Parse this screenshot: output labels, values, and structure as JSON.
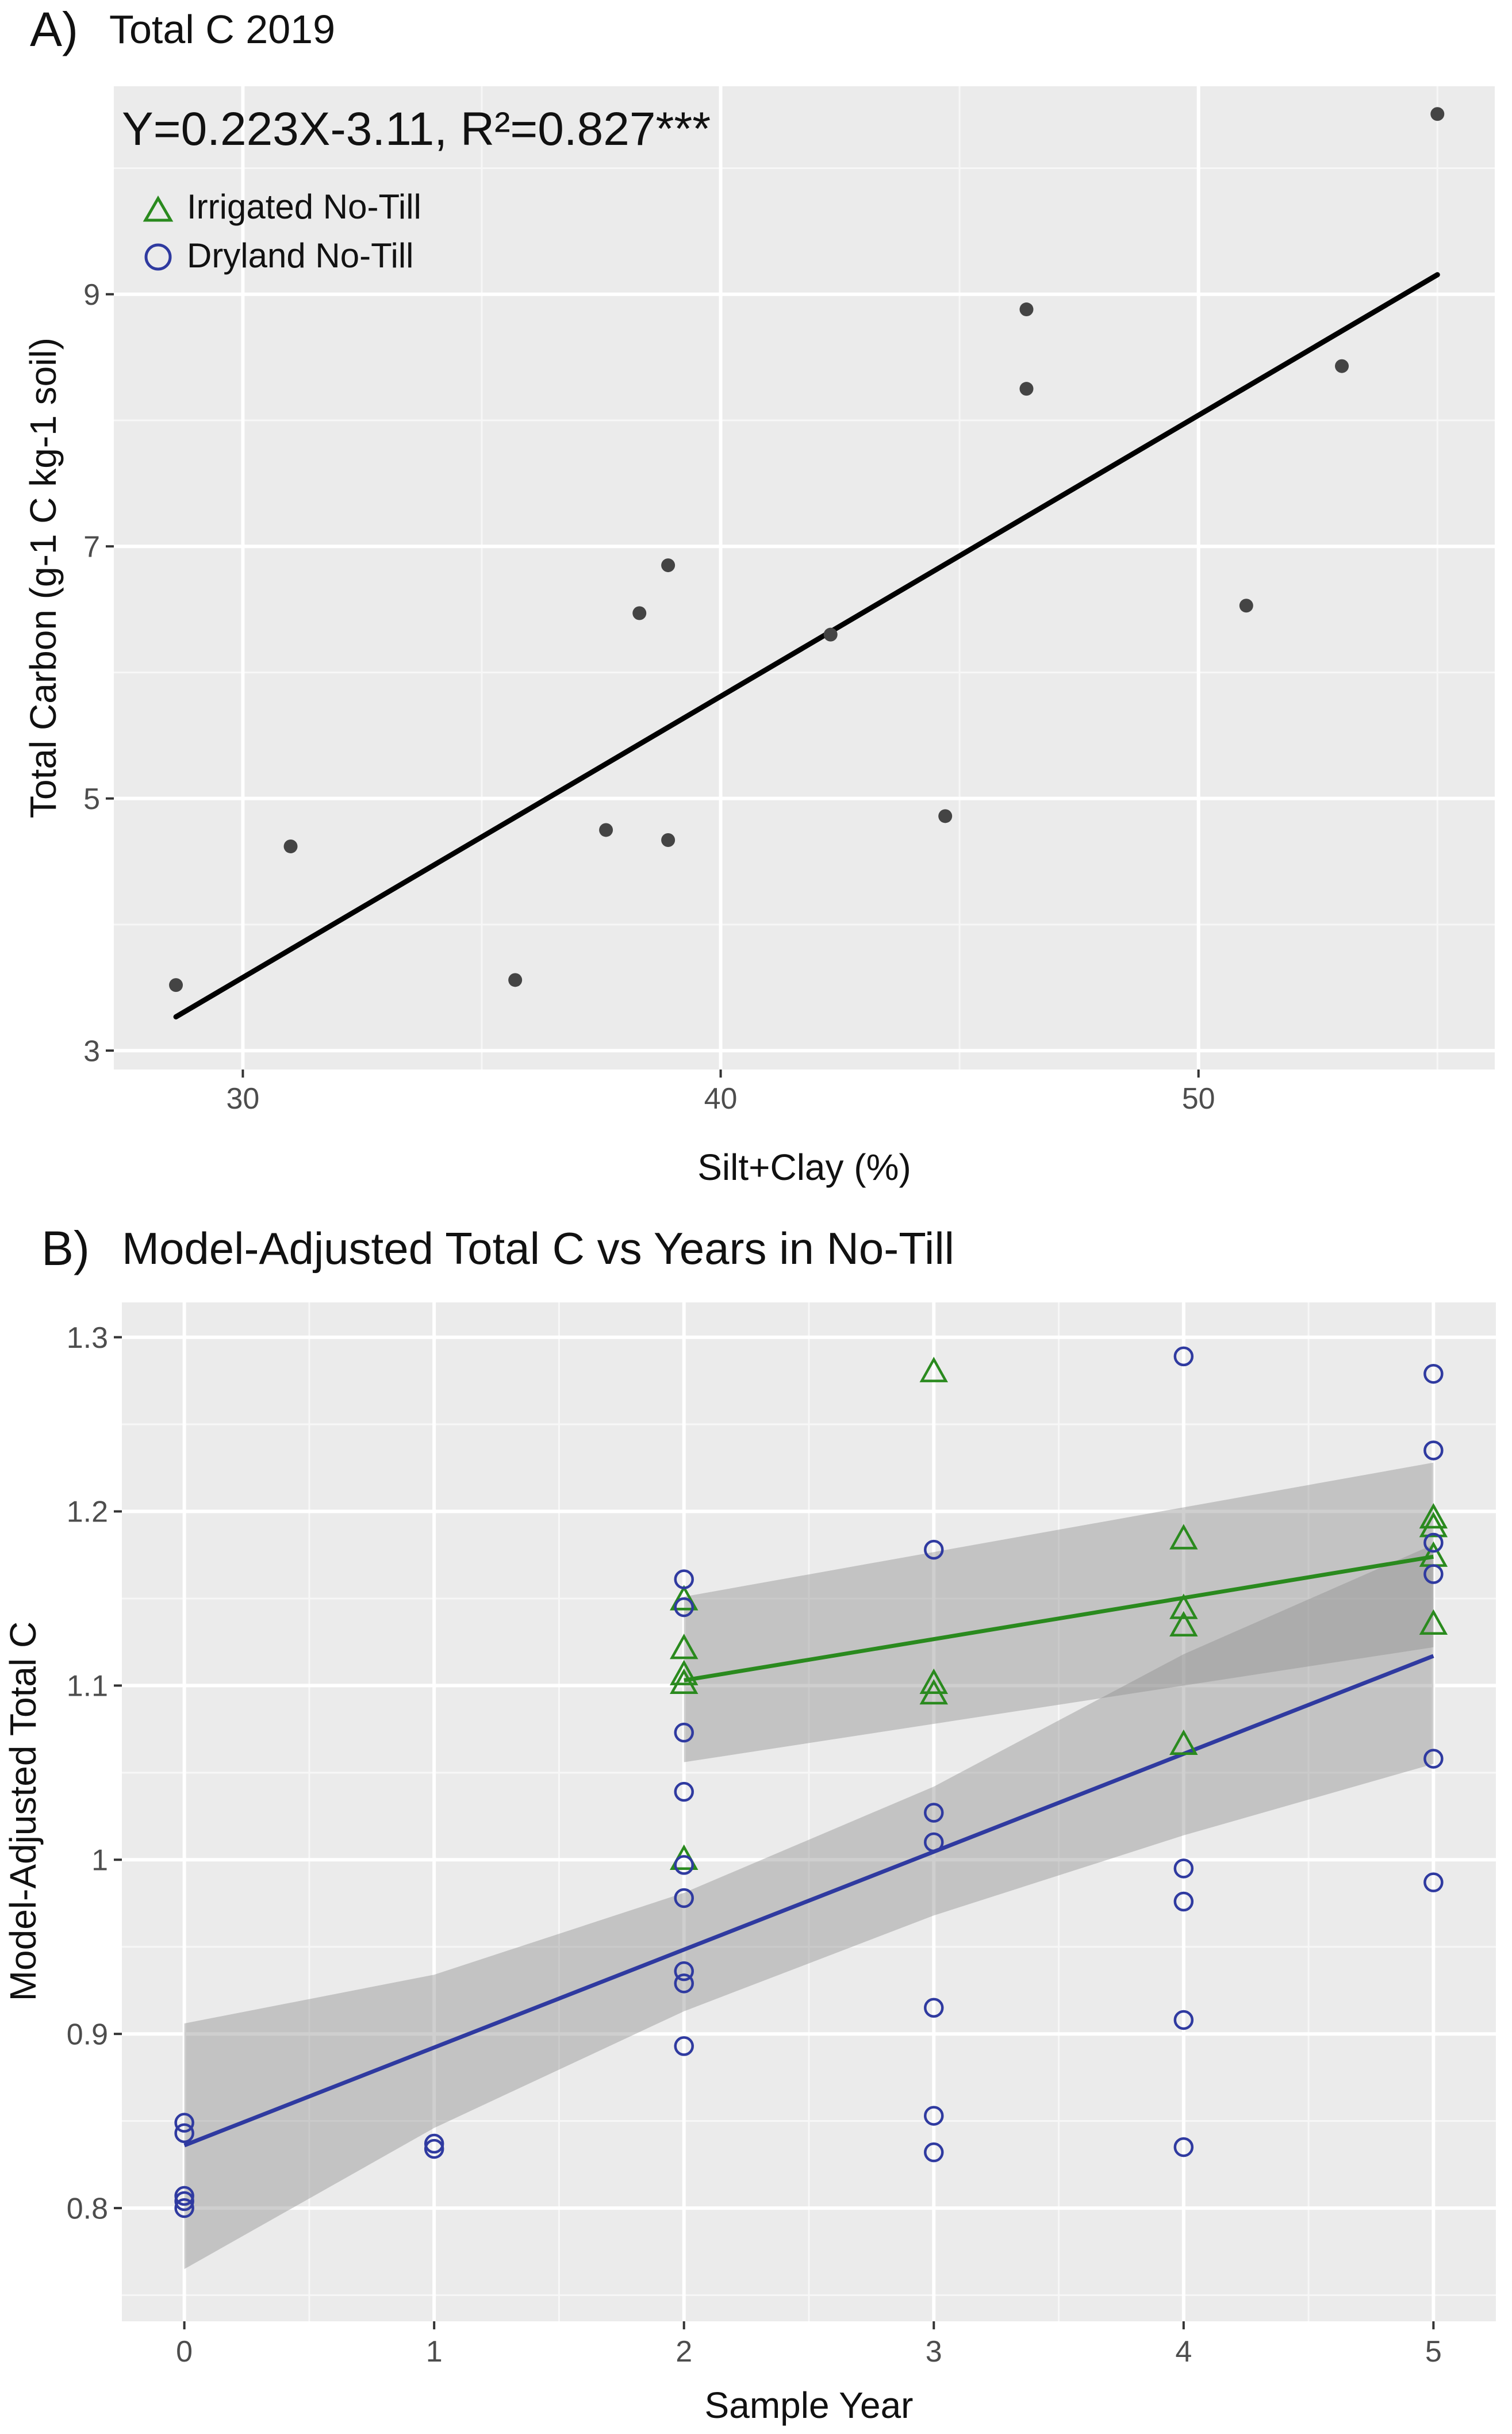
{
  "panelA": {
    "panel_label": "A)",
    "equation": "Y=0.223X-3.11, R²=0.827***",
    "legend": [
      {
        "label": "Irrigated No-Till",
        "marker": "triangle",
        "color": "#2a8a1e"
      },
      {
        "label": "Dryland No-Till",
        "marker": "circle",
        "color": "#2f3aa0"
      }
    ]
  },
  "panelB": {
    "panel_label": "B)"
  },
  "chart_data": [
    {
      "type": "scatter",
      "title": "Total C 2019",
      "xlabel": "Silt+Clay (%)",
      "ylabel": "Total Carbon (g-1 C kg-1 soil)",
      "xlim": [
        27.3,
        56.2
      ],
      "ylim": [
        2.85,
        10.65
      ],
      "xticks": [
        30,
        40,
        50
      ],
      "yticks": [
        3,
        5,
        7,
        9
      ],
      "grid": true,
      "point_color": "#444444",
      "points": [
        {
          "x": 28.6,
          "y": 3.52
        },
        {
          "x": 31.0,
          "y": 4.62
        },
        {
          "x": 35.7,
          "y": 3.56
        },
        {
          "x": 37.6,
          "y": 4.75
        },
        {
          "x": 38.3,
          "y": 6.47
        },
        {
          "x": 38.9,
          "y": 6.85
        },
        {
          "x": 38.9,
          "y": 4.67
        },
        {
          "x": 42.3,
          "y": 6.3
        },
        {
          "x": 44.7,
          "y": 4.86
        },
        {
          "x": 46.4,
          "y": 8.88
        },
        {
          "x": 46.4,
          "y": 8.25
        },
        {
          "x": 51.0,
          "y": 6.53
        },
        {
          "x": 53.0,
          "y": 8.43
        },
        {
          "x": 55.0,
          "y": 10.43
        }
      ],
      "fit": {
        "slope": 0.223,
        "intercept": -3.11,
        "x_range": [
          28.6,
          55.0
        ],
        "color": "#000000"
      }
    },
    {
      "type": "scatter",
      "title": "Model-Adjusted Total C vs Years in No-Till",
      "xlabel": "Sample Year",
      "ylabel": "Model-Adjusted Total C",
      "xlim": [
        -0.25,
        5.25
      ],
      "ylim": [
        0.735,
        1.32
      ],
      "xticks": [
        0,
        1,
        2,
        3,
        4,
        5
      ],
      "yticks": [
        0.8,
        0.9,
        1.0,
        1.1,
        1.2,
        1.3
      ],
      "grid": true,
      "series": [
        {
          "name": "Irrigated No-Till",
          "marker": "triangle",
          "color": "#2a8a1e",
          "points": [
            {
              "x": 2,
              "y": 1.149
            },
            {
              "x": 2,
              "y": 1.121
            },
            {
              "x": 2,
              "y": 1.106
            },
            {
              "x": 2,
              "y": 1.101
            },
            {
              "x": 2,
              "y": 1.0
            },
            {
              "x": 3,
              "y": 1.28
            },
            {
              "x": 3,
              "y": 1.101
            },
            {
              "x": 3,
              "y": 1.095
            },
            {
              "x": 4,
              "y": 1.184
            },
            {
              "x": 4,
              "y": 1.144
            },
            {
              "x": 4,
              "y": 1.134
            },
            {
              "x": 4,
              "y": 1.066
            },
            {
              "x": 5,
              "y": 1.196
            },
            {
              "x": 5,
              "y": 1.191
            },
            {
              "x": 5,
              "y": 1.174
            },
            {
              "x": 5,
              "y": 1.135
            }
          ],
          "fit": {
            "x": [
              2,
              5
            ],
            "y": [
              1.103,
              1.174
            ]
          },
          "band": {
            "x": [
              2,
              5
            ],
            "lower": [
              1.056,
              1.122
            ],
            "upper": [
              1.151,
              1.228
            ]
          }
        },
        {
          "name": "Dryland No-Till",
          "marker": "circle",
          "color": "#2f3aa0",
          "points": [
            {
              "x": 0,
              "y": 0.849
            },
            {
              "x": 0,
              "y": 0.843
            },
            {
              "x": 0,
              "y": 0.807
            },
            {
              "x": 0,
              "y": 0.804
            },
            {
              "x": 0,
              "y": 0.8
            },
            {
              "x": 1,
              "y": 0.837
            },
            {
              "x": 1,
              "y": 0.834
            },
            {
              "x": 2,
              "y": 1.161
            },
            {
              "x": 2,
              "y": 1.145
            },
            {
              "x": 2,
              "y": 1.073
            },
            {
              "x": 2,
              "y": 1.039
            },
            {
              "x": 2,
              "y": 0.997
            },
            {
              "x": 2,
              "y": 0.978
            },
            {
              "x": 2,
              "y": 0.936
            },
            {
              "x": 2,
              "y": 0.929
            },
            {
              "x": 2,
              "y": 0.893
            },
            {
              "x": 3,
              "y": 1.178
            },
            {
              "x": 3,
              "y": 1.027
            },
            {
              "x": 3,
              "y": 1.01
            },
            {
              "x": 3,
              "y": 0.915
            },
            {
              "x": 3,
              "y": 0.853
            },
            {
              "x": 3,
              "y": 0.832
            },
            {
              "x": 4,
              "y": 1.289
            },
            {
              "x": 4,
              "y": 0.995
            },
            {
              "x": 4,
              "y": 0.976
            },
            {
              "x": 4,
              "y": 0.908
            },
            {
              "x": 4,
              "y": 0.835
            },
            {
              "x": 5,
              "y": 1.279
            },
            {
              "x": 5,
              "y": 1.235
            },
            {
              "x": 5,
              "y": 1.182
            },
            {
              "x": 5,
              "y": 1.164
            },
            {
              "x": 5,
              "y": 1.058
            },
            {
              "x": 5,
              "y": 0.987
            }
          ],
          "fit": {
            "x": [
              0,
              5
            ],
            "y": [
              0.836,
              1.117
            ]
          },
          "band": {
            "x": [
              0,
              1,
              2,
              3,
              4,
              5
            ],
            "lower": [
              0.765,
              0.846,
              0.913,
              0.968,
              1.014,
              1.055
            ],
            "upper": [
              0.906,
              0.934,
              0.981,
              1.042,
              1.118,
              1.181
            ]
          }
        }
      ]
    }
  ]
}
